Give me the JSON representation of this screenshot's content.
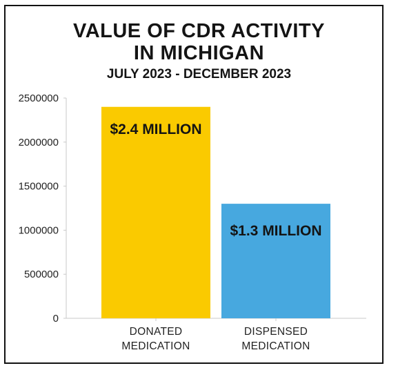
{
  "title_line1": "VALUE OF CDR ACTIVITY",
  "title_line2": "IN MICHIGAN",
  "subtitle": "JULY 2023 - DECEMBER 2023",
  "chart_data": {
    "type": "bar",
    "categories": [
      [
        "DONATED",
        "MEDICATION"
      ],
      [
        "DISPENSED",
        "MEDICATION"
      ]
    ],
    "values": [
      2400000,
      1300000
    ],
    "data_labels": [
      "$2.4 MILLION",
      "$1.3 MILLION"
    ],
    "colors": [
      "#FACA00",
      "#47A8DF"
    ],
    "ylim": [
      0,
      2500000
    ],
    "yticks": [
      0,
      500000,
      1000000,
      1500000,
      2000000,
      2500000
    ],
    "ytick_labels": [
      "0",
      "500000",
      "1000000",
      "1500000",
      "2000000",
      "2500000"
    ],
    "xlabel": "",
    "ylabel": "",
    "grid": false
  }
}
